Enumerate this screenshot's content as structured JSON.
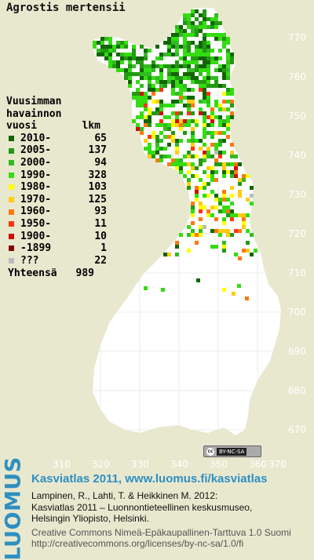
{
  "title": "Agrostis mertensii",
  "legend": {
    "header_lines": [
      "Vuusimman",
      "havainnon"
    ],
    "header_left": "vuosi",
    "header_right": "lkm",
    "items": [
      {
        "label": "2010-",
        "count": "65",
        "color": "#116600"
      },
      {
        "label": "2005-",
        "count": "137",
        "color": "#229911"
      },
      {
        "label": "2000-",
        "count": "94",
        "color": "#33bb22"
      },
      {
        "label": "1990-",
        "count": "328",
        "color": "#33dd11"
      },
      {
        "label": "1980-",
        "count": "103",
        "color": "#ffff00"
      },
      {
        "label": "1970-",
        "count": "125",
        "color": "#ffcc11"
      },
      {
        "label": "1960-",
        "count": "93",
        "color": "#ff7711"
      },
      {
        "label": "1950-",
        "count": "11",
        "color": "#ff3311"
      },
      {
        "label": "1900-",
        "count": "10",
        "color": "#cc1100"
      },
      {
        "label": "-1899",
        "count": "1",
        "color": "#880000"
      },
      {
        "label": "???",
        "count": "22",
        "color": "#bbbbbb"
      }
    ],
    "total_label": "Yhteensä",
    "total_count": "989"
  },
  "y_ticks": [
    "770",
    "760",
    "750",
    "740",
    "730",
    "720",
    "710",
    "700",
    "690",
    "680",
    "670"
  ],
  "x_ticks": [
    "310",
    "320",
    "330",
    "340",
    "350",
    "360",
    "370"
  ],
  "cc_badge": "BY-NC-SA",
  "footer": {
    "logo": "LUOMUS",
    "headline": "Kasviatlas 2011, www.luomus.fi/kasviatlas",
    "citation_line1": "Lampinen, R., Lahti, T. & Heikkinen M. 2012:",
    "citation_line2": "Kasviatlas 2011 – Luonnontieteellinen keskusmuseo,",
    "citation_line3": "Helsingin Yliopisto, Helsinki.",
    "license_line1": "Creative Commons Nimeä-Epäkaupallinen-Tarttuva 1.0 Suomi",
    "license_line2": "http://creativecommons.org/licenses/by-nc-sa/1.0/fi"
  },
  "colors": {
    "background": "#e8e8cf",
    "land": "#ffffff",
    "accent": "#2f8fc0"
  }
}
